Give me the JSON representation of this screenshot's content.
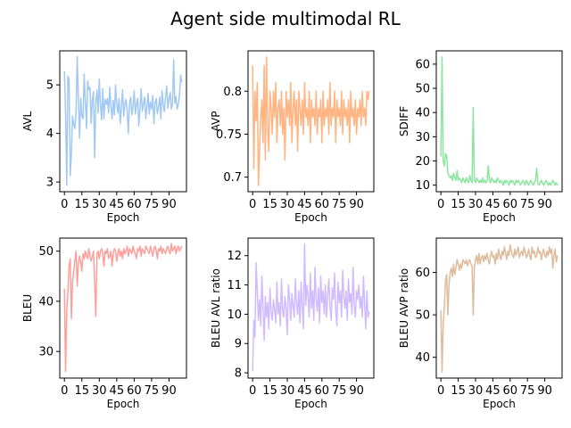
{
  "figure": {
    "title": "Agent side multimodal RL"
  },
  "chart_data": [
    {
      "type": "line",
      "xlabel": "Epoch",
      "ylabel": "AVL",
      "color": "#a1c9f4",
      "xlim": [
        -4,
        105
      ],
      "ylim": [
        2.8,
        5.7
      ],
      "xticks": [
        0,
        15,
        30,
        45,
        60,
        75,
        90
      ],
      "yticks": [
        3,
        4,
        5
      ],
      "series": [
        {
          "values": [
            5.28,
            4.4,
            2.93,
            5.18,
            5.12,
            3.13,
            3.6,
            4.36,
            4.19,
            4.1,
            4.42,
            5.58,
            4.72,
            3.9,
            4.72,
            4.35,
            4.3,
            5.22,
            4.65,
            4.1,
            5.08,
            4.9,
            4.95,
            4.2,
            4.7,
            4.86,
            3.5,
            4.62,
            4.9,
            4.42,
            5.12,
            4.58,
            4.28,
            4.92,
            4.3,
            4.7,
            4.6,
            4.72,
            4.42,
            4.95,
            4.55,
            4.3,
            4.68,
            4.38,
            5.0,
            4.6,
            4.42,
            4.72,
            4.2,
            4.55,
            4.9,
            4.35,
            4.6,
            4.7,
            4.45,
            4.0,
            4.62,
            4.75,
            4.38,
            4.55,
            4.88,
            4.4,
            4.6,
            4.72,
            4.15,
            4.5,
            4.92,
            4.45,
            4.6,
            4.75,
            4.3,
            4.55,
            4.82,
            4.4,
            4.65,
            4.5,
            4.78,
            4.2,
            4.62,
            4.72,
            4.4,
            4.55,
            4.75,
            4.3,
            4.88,
            4.6,
            4.45,
            4.75,
            4.98,
            4.52,
            4.7,
            4.85,
            4.5,
            4.6,
            5.52,
            4.62,
            4.75,
            4.5,
            4.6,
            4.8,
            5.2,
            5.05
          ]
        }
      ]
    },
    {
      "type": "line",
      "xlabel": "Epoch",
      "ylabel": "AVP",
      "color": "#ffb482",
      "xlim": [
        -4,
        105
      ],
      "ylim": [
        0.683,
        0.847
      ],
      "xticks": [
        0,
        15,
        30,
        45,
        60,
        75,
        90
      ],
      "yticks": [
        0.7,
        0.75,
        0.8
      ],
      "series": [
        {
          "values": [
            0.83,
            0.71,
            0.8,
            0.765,
            0.81,
            0.69,
            0.73,
            0.77,
            0.79,
            0.74,
            0.83,
            0.72,
            0.84,
            0.76,
            0.73,
            0.8,
            0.78,
            0.75,
            0.8,
            0.77,
            0.81,
            0.74,
            0.78,
            0.79,
            0.76,
            0.8,
            0.75,
            0.78,
            0.72,
            0.8,
            0.77,
            0.79,
            0.76,
            0.81,
            0.74,
            0.78,
            0.8,
            0.76,
            0.79,
            0.73,
            0.8,
            0.78,
            0.76,
            0.79,
            0.75,
            0.81,
            0.77,
            0.78,
            0.76,
            0.8,
            0.74,
            0.79,
            0.77,
            0.78,
            0.76,
            0.8,
            0.75,
            0.78,
            0.77,
            0.79,
            0.74,
            0.8,
            0.76,
            0.78,
            0.77,
            0.79,
            0.75,
            0.81,
            0.76,
            0.78,
            0.77,
            0.8,
            0.74,
            0.79,
            0.77,
            0.78,
            0.76,
            0.8,
            0.75,
            0.79,
            0.77,
            0.78,
            0.76,
            0.79,
            0.74,
            0.8,
            0.77,
            0.78,
            0.76,
            0.79,
            0.75,
            0.78,
            0.77,
            0.79,
            0.76,
            0.8,
            0.77,
            0.78,
            0.76,
            0.8,
            0.79,
            0.8
          ]
        }
      ]
    },
    {
      "type": "line",
      "xlabel": "Epoch",
      "ylabel": "SDIFF",
      "color": "#8de5a1",
      "xlim": [
        -4,
        105
      ],
      "ylim": [
        7.3,
        65.5
      ],
      "xticks": [
        0,
        15,
        30,
        45,
        60,
        75,
        90
      ],
      "yticks": [
        10,
        20,
        30,
        40,
        50,
        60
      ],
      "series": [
        {
          "values": [
            22,
            63,
            20,
            18,
            23,
            22,
            15,
            14,
            13,
            14,
            12,
            15,
            13,
            12,
            16,
            12,
            13,
            12,
            11,
            13,
            12,
            11,
            13,
            12,
            11,
            14,
            12,
            11,
            42,
            12,
            11,
            13,
            12,
            11,
            12,
            11,
            13,
            11,
            12,
            11,
            12,
            18,
            12,
            11,
            13,
            12,
            11,
            12,
            11,
            13,
            12,
            11,
            12,
            11,
            10,
            12,
            11,
            12,
            11,
            10,
            12,
            11,
            12,
            11,
            10,
            12,
            11,
            12,
            11,
            10,
            11,
            12,
            11,
            10,
            12,
            11,
            10,
            11,
            12,
            11,
            10,
            11,
            12,
            17,
            11,
            10,
            11,
            12,
            11,
            10,
            11,
            12,
            11,
            10,
            11,
            10,
            11,
            12,
            11,
            10,
            11,
            10
          ]
        }
      ]
    },
    {
      "type": "line",
      "xlabel": "Epoch",
      "ylabel": "BLEU",
      "color": "#ff9f9b",
      "xlim": [
        -4,
        105
      ],
      "ylim": [
        24.7,
        52.6
      ],
      "xticks": [
        0,
        15,
        30,
        45,
        60,
        75,
        90
      ],
      "yticks": [
        30,
        40,
        50
      ],
      "series": [
        {
          "values": [
            42.5,
            26,
            38,
            42,
            47,
            48.5,
            36.5,
            44,
            46,
            48,
            50,
            43,
            47.5,
            49,
            48,
            46,
            49.5,
            48.5,
            50,
            49,
            48.5,
            50.5,
            49,
            48,
            49,
            50,
            44,
            37,
            49.5,
            50,
            48.5,
            50,
            50.5,
            49.5,
            47,
            50,
            49.5,
            50.5,
            48.5,
            49,
            50,
            47,
            49.5,
            50.5,
            50,
            48,
            49.5,
            50.5,
            49,
            50,
            48.5,
            50.5,
            49.5,
            50,
            51,
            49,
            50.5,
            50,
            49.5,
            51,
            50,
            49.5,
            48.5,
            50.5,
            50,
            51,
            49,
            50.5,
            50,
            49.5,
            51,
            50.5,
            50,
            49.5,
            51,
            50,
            49,
            50.5,
            51,
            50,
            48.5,
            50.5,
            50,
            51,
            49.5,
            50.5,
            50,
            49.5,
            50.5,
            51,
            50,
            49.5,
            51.5,
            50,
            50.5,
            51,
            49.5,
            50.5,
            51,
            50,
            50.5,
            51
          ]
        }
      ]
    },
    {
      "type": "line",
      "xlabel": "Epoch",
      "ylabel": "BLEU AVL ratio",
      "color": "#d0bbff",
      "xlim": [
        -4,
        105
      ],
      "ylim": [
        7.82,
        12.6
      ],
      "xticks": [
        0,
        15,
        30,
        45,
        60,
        75,
        90
      ],
      "yticks": [
        8,
        9,
        10,
        11,
        12
      ],
      "series": [
        {
          "values": [
            8.05,
            9.8,
            9.2,
            11.75,
            10.8,
            9.8,
            10.5,
            9.6,
            11.3,
            10.2,
            9.1,
            10.6,
            9.9,
            10.4,
            9.5,
            10.9,
            10.1,
            9.8,
            10.5,
            10.2,
            9.7,
            11.1,
            10.0,
            10.4,
            9.6,
            11.2,
            10.1,
            9.9,
            10.6,
            10.2,
            9.3,
            11.0,
            10.5,
            9.8,
            10.7,
            10.3,
            9.9,
            11.2,
            10.4,
            10.0,
            10.8,
            9.7,
            11.1,
            10.3,
            9.5,
            12.4,
            10.3,
            11.0,
            10.6,
            9.9,
            11.4,
            10.2,
            10.8,
            9.8,
            11.6,
            10.5,
            10.1,
            10.9,
            9.7,
            11.3,
            10.4,
            10.8,
            10.0,
            11.0,
            9.9,
            10.6,
            11.2,
            10.3,
            9.8,
            10.9,
            10.5,
            11.4,
            10.1,
            9.6,
            11.1,
            10.4,
            10.8,
            9.9,
            11.5,
            10.6,
            10.2,
            10.8,
            9.8,
            11.2,
            10.4,
            10.7,
            10.0,
            11.6,
            10.3,
            9.9,
            10.8,
            10.5,
            11.0,
            10.2,
            10.6,
            9.9,
            11.3,
            10.4,
            9.5,
            10.8,
            9.9,
            10.1
          ]
        }
      ]
    },
    {
      "type": "line",
      "xlabel": "Epoch",
      "ylabel": "BLEU AVP ratio",
      "color": "#debb9b",
      "xlim": [
        -4,
        105
      ],
      "ylim": [
        35.1,
        68.1
      ],
      "xticks": [
        0,
        15,
        30,
        45,
        60,
        75,
        90
      ],
      "yticks": [
        40,
        50,
        60
      ],
      "series": [
        {
          "values": [
            51,
            36.5,
            48,
            52,
            58,
            59.5,
            50,
            57,
            60,
            61,
            59,
            62,
            59.5,
            61,
            63,
            62,
            60.5,
            62,
            61,
            63,
            62.5,
            62,
            63,
            61.5,
            62.5,
            63,
            62,
            61.5,
            50,
            61,
            63,
            64,
            62,
            64.5,
            62,
            63.5,
            64,
            62.5,
            64,
            63,
            64.5,
            63,
            62,
            64,
            65,
            63.5,
            64,
            62,
            64.5,
            63,
            65.5,
            64,
            63,
            65,
            64,
            66,
            64.5,
            63,
            65,
            64,
            66.5,
            65,
            64,
            63.5,
            65.5,
            64,
            65,
            66,
            63.5,
            64.5,
            65,
            64,
            66,
            65,
            63.5,
            64,
            65.5,
            64,
            63,
            66,
            64.5,
            65,
            63.5,
            64,
            66,
            64.5,
            65,
            63,
            64.5,
            65.5,
            64,
            63.5,
            65,
            64,
            66,
            64.5,
            65.5,
            61,
            64,
            65.5,
            62.5,
            64
          ]
        }
      ]
    }
  ]
}
